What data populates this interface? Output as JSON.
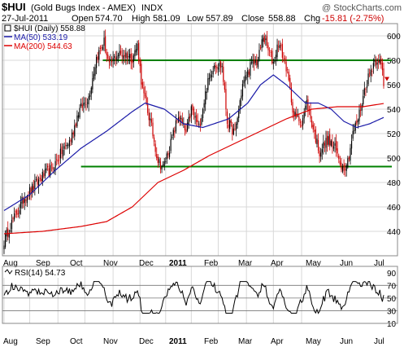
{
  "header": {
    "symbol": "$HUI",
    "name": "(Gold Bugs Index - AMEX)",
    "exchange": "INDX",
    "watermark": "@ StockCharts.com",
    "date": "27-Jul-2011",
    "open_label": "Open",
    "open": "574.70",
    "high_label": "High",
    "high": "581.09",
    "low_label": "Low",
    "low": "557.89",
    "close_label": "Close",
    "close": "558.88",
    "chg_label": "Chg",
    "chg": "-15.81 (-2.75%)"
  },
  "legend": {
    "price": "$HUI (Daily) 558.88",
    "ma50": "MA(50) 533.19",
    "ma200": "MA(200) 544.63"
  },
  "rsi_legend": "RSI(14) 54.73",
  "colors": {
    "price": "#000000",
    "down": "#cc0000",
    "ma50": "#1a1aa8",
    "ma200": "#dd0000",
    "trendline": "#008000",
    "grid": "#d8d8d8",
    "header_red": "#cc0000"
  },
  "chart_data": [
    {
      "type": "candlestick",
      "title": "$HUI (Gold Bugs Index - AMEX) INDX",
      "ylim": [
        420,
        610
      ],
      "y_ticks": [
        440,
        460,
        480,
        500,
        520,
        540,
        560,
        580,
        600
      ],
      "x_months": [
        "Aug",
        "Sep",
        "Oct",
        "Nov",
        "Dec",
        "2011",
        "Feb",
        "Mar",
        "Apr",
        "May",
        "Jun",
        "Jul"
      ],
      "grid": true,
      "legend_position": "top-left",
      "close_anchors": [
        [
          0,
          432
        ],
        [
          5,
          445
        ],
        [
          10,
          455
        ],
        [
          16,
          468
        ],
        [
          22,
          475
        ],
        [
          30,
          485
        ],
        [
          38,
          492
        ],
        [
          45,
          505
        ],
        [
          52,
          515
        ],
        [
          58,
          538
        ],
        [
          66,
          550
        ],
        [
          72,
          582
        ],
        [
          78,
          595
        ],
        [
          82,
          575
        ],
        [
          88,
          585
        ],
        [
          95,
          585
        ],
        [
          100,
          582
        ],
        [
          104,
          592
        ],
        [
          108,
          555
        ],
        [
          114,
          530
        ],
        [
          120,
          498
        ],
        [
          124,
          492
        ],
        [
          130,
          512
        ],
        [
          136,
          535
        ],
        [
          142,
          520
        ],
        [
          146,
          540
        ],
        [
          152,
          525
        ],
        [
          158,
          558
        ],
        [
          164,
          578
        ],
        [
          170,
          575
        ],
        [
          174,
          530
        ],
        [
          180,
          520
        ],
        [
          186,
          560
        ],
        [
          192,
          575
        ],
        [
          198,
          580
        ],
        [
          202,
          600
        ],
        [
          206,
          588
        ],
        [
          210,
          578
        ],
        [
          214,
          595
        ],
        [
          220,
          575
        ],
        [
          226,
          535
        ],
        [
          232,
          530
        ],
        [
          236,
          545
        ],
        [
          242,
          520
        ],
        [
          246,
          505
        ],
        [
          252,
          515
        ],
        [
          258,
          508
        ],
        [
          264,
          492
        ],
        [
          268,
          498
        ],
        [
          272,
          520
        ],
        [
          276,
          532
        ],
        [
          282,
          560
        ],
        [
          288,
          578
        ],
        [
          292,
          582
        ],
        [
          295,
          570
        ],
        [
          296,
          558.88
        ]
      ],
      "ma50_anchors": [
        [
          0,
          457
        ],
        [
          20,
          470
        ],
        [
          40,
          490
        ],
        [
          60,
          508
        ],
        [
          80,
          522
        ],
        [
          100,
          538
        ],
        [
          110,
          545
        ],
        [
          125,
          540
        ],
        [
          140,
          528
        ],
        [
          155,
          525
        ],
        [
          175,
          532
        ],
        [
          190,
          545
        ],
        [
          200,
          560
        ],
        [
          210,
          568
        ],
        [
          220,
          560
        ],
        [
          235,
          545
        ],
        [
          245,
          545
        ],
        [
          255,
          540
        ],
        [
          265,
          530
        ],
        [
          275,
          525
        ],
        [
          285,
          528
        ],
        [
          296,
          533.19
        ]
      ],
      "ma200_anchors": [
        [
          0,
          438
        ],
        [
          30,
          440
        ],
        [
          60,
          444
        ],
        [
          80,
          448
        ],
        [
          100,
          460
        ],
        [
          120,
          480
        ],
        [
          140,
          490
        ],
        [
          160,
          502
        ],
        [
          180,
          512
        ],
        [
          200,
          522
        ],
        [
          220,
          532
        ],
        [
          240,
          540
        ],
        [
          260,
          542
        ],
        [
          280,
          542
        ],
        [
          296,
          544.63
        ]
      ],
      "trendlines": [
        {
          "name": "resistance",
          "x_from": 77,
          "x_to": 296,
          "value": 580
        },
        {
          "name": "support",
          "x_from": 60,
          "x_to": 296,
          "value": 493
        }
      ]
    },
    {
      "type": "line",
      "title": "RSI(14) 54.73",
      "ylim": [
        10,
        100
      ],
      "y_ticks": [
        10,
        30,
        50,
        70,
        90
      ],
      "reference_levels": [
        30,
        50,
        70
      ],
      "last_value": 54.73
    }
  ]
}
